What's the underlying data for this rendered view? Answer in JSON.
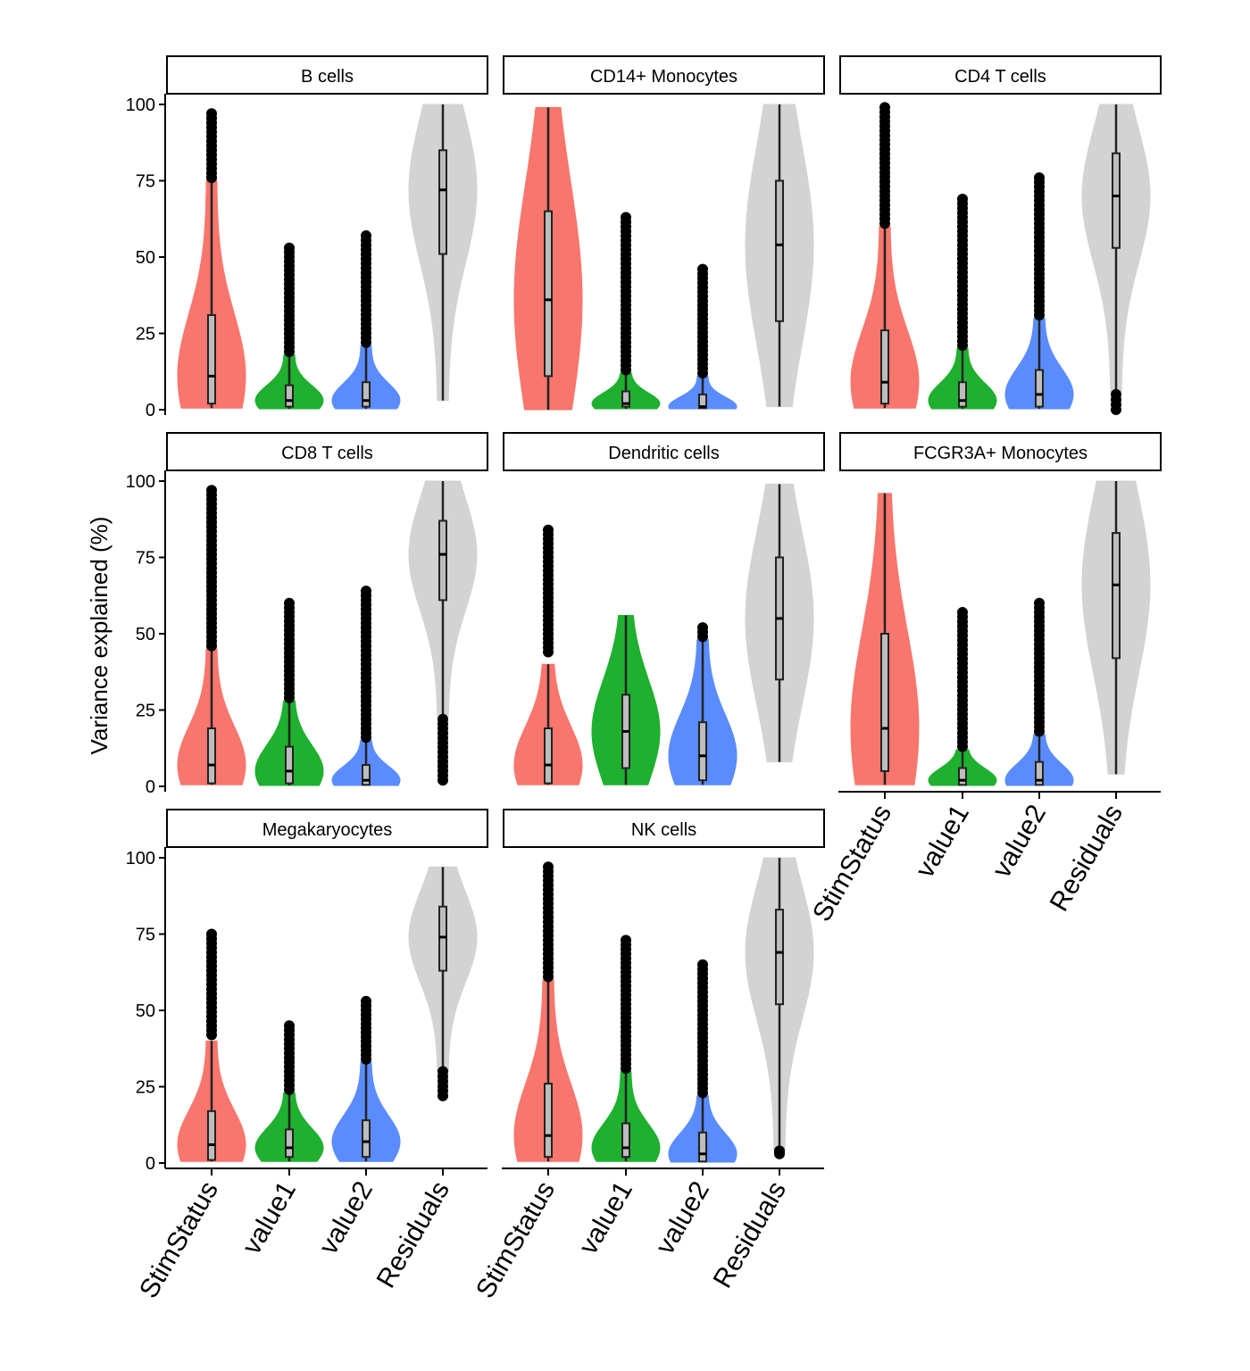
{
  "chart_data": {
    "type": "violin",
    "ylabel": "Variance explained (%)",
    "xlabel": "",
    "ylim": [
      0,
      100
    ],
    "yticks": [
      0,
      25,
      50,
      75,
      100
    ],
    "categories": [
      "StimStatus",
      "value1",
      "value2",
      "Residuals"
    ],
    "colors": {
      "StimStatus": "#F8766D",
      "value1": "#1EB02E",
      "value2": "#5A8CFF",
      "Residuals": "#D3D3D3"
    },
    "layout": "facet_wrap, 3 columns",
    "panels": [
      {
        "title": "B cells",
        "series": [
          {
            "category": "StimStatus",
            "min": 0.5,
            "q1": 2,
            "median": 11,
            "q3": 31,
            "whisker_high": 75,
            "outliers_from": 76,
            "outliers_to": 97
          },
          {
            "category": "value1",
            "min": 0.3,
            "q1": 1,
            "median": 3,
            "q3": 8,
            "whisker_high": 18,
            "outliers_from": 19,
            "outliers_to": 53
          },
          {
            "category": "value2",
            "min": 0.3,
            "q1": 1,
            "median": 3,
            "q3": 9,
            "whisker_high": 21,
            "outliers_from": 22,
            "outliers_to": 57
          },
          {
            "category": "Residuals",
            "min": 3,
            "q1": 51,
            "median": 72,
            "q3": 85,
            "whisker_high": 100,
            "outliers_from": null,
            "outliers_to": null
          }
        ]
      },
      {
        "title": "CD14+ Monocytes",
        "series": [
          {
            "category": "StimStatus",
            "min": 0,
            "q1": 11,
            "median": 36,
            "q3": 65,
            "whisker_high": 99,
            "outliers_from": null,
            "outliers_to": null
          },
          {
            "category": "value1",
            "min": 0.3,
            "q1": 1,
            "median": 2,
            "q3": 6,
            "whisker_high": 12,
            "outliers_from": 13,
            "outliers_to": 63
          },
          {
            "category": "value2",
            "min": 0.3,
            "q1": 0.5,
            "median": 1,
            "q3": 5,
            "whisker_high": 11,
            "outliers_from": 12,
            "outliers_to": 46
          },
          {
            "category": "Residuals",
            "min": 1,
            "q1": 29,
            "median": 54,
            "q3": 75,
            "whisker_high": 100,
            "outliers_from": null,
            "outliers_to": null
          }
        ]
      },
      {
        "title": "CD4 T cells",
        "series": [
          {
            "category": "StimStatus",
            "min": 0.5,
            "q1": 2,
            "median": 9,
            "q3": 26,
            "whisker_high": 60,
            "outliers_from": 61,
            "outliers_to": 99
          },
          {
            "category": "value1",
            "min": 0.3,
            "q1": 1,
            "median": 3,
            "q3": 9,
            "whisker_high": 20,
            "outliers_from": 21,
            "outliers_to": 69
          },
          {
            "category": "value2",
            "min": 0.3,
            "q1": 1,
            "median": 5,
            "q3": 13,
            "whisker_high": 30,
            "outliers_from": 31,
            "outliers_to": 76
          },
          {
            "category": "Residuals",
            "min": 6,
            "q1": 53,
            "median": 70,
            "q3": 84,
            "whisker_high": 100,
            "outliers_from": 0,
            "outliers_to": 5
          }
        ]
      },
      {
        "title": "CD8 T cells",
        "series": [
          {
            "category": "StimStatus",
            "min": 0.5,
            "q1": 1,
            "median": 7,
            "q3": 19,
            "whisker_high": 45,
            "outliers_from": 46,
            "outliers_to": 97
          },
          {
            "category": "value1",
            "min": 0.3,
            "q1": 1,
            "median": 5,
            "q3": 13,
            "whisker_high": 28,
            "outliers_from": 29,
            "outliers_to": 60
          },
          {
            "category": "value2",
            "min": 0.3,
            "q1": 0.5,
            "median": 2,
            "q3": 7,
            "whisker_high": 15,
            "outliers_from": 16,
            "outliers_to": 64
          },
          {
            "category": "Residuals",
            "min": 23,
            "q1": 61,
            "median": 76,
            "q3": 87,
            "whisker_high": 100,
            "outliers_from": 2,
            "outliers_to": 22
          }
        ]
      },
      {
        "title": "Dendritic cells",
        "series": [
          {
            "category": "StimStatus",
            "min": 0.5,
            "q1": 1,
            "median": 7,
            "q3": 19,
            "whisker_high": 40,
            "outliers_from": 44,
            "outliers_to": 84
          },
          {
            "category": "value1",
            "min": 0.5,
            "q1": 6,
            "median": 18,
            "q3": 30,
            "whisker_high": 56,
            "outliers_from": null,
            "outliers_to": null
          },
          {
            "category": "value2",
            "min": 0.5,
            "q1": 2,
            "median": 10,
            "q3": 21,
            "whisker_high": 48,
            "outliers_from": 49,
            "outliers_to": 52
          },
          {
            "category": "Residuals",
            "min": 8,
            "q1": 35,
            "median": 55,
            "q3": 75,
            "whisker_high": 99,
            "outliers_from": null,
            "outliers_to": null
          }
        ]
      },
      {
        "title": "FCGR3A+ Monocytes",
        "series": [
          {
            "category": "StimStatus",
            "min": 0.5,
            "q1": 5,
            "median": 19,
            "q3": 50,
            "whisker_high": 96,
            "outliers_from": null,
            "outliers_to": null
          },
          {
            "category": "value1",
            "min": 0.3,
            "q1": 0.5,
            "median": 2,
            "q3": 6,
            "whisker_high": 12,
            "outliers_from": 13,
            "outliers_to": 57
          },
          {
            "category": "value2",
            "min": 0.3,
            "q1": 0.5,
            "median": 2,
            "q3": 8,
            "whisker_high": 17,
            "outliers_from": 18,
            "outliers_to": 60
          },
          {
            "category": "Residuals",
            "min": 4,
            "q1": 42,
            "median": 66,
            "q3": 83,
            "whisker_high": 100,
            "outliers_from": null,
            "outliers_to": null
          }
        ]
      },
      {
        "title": "Megakaryocytes",
        "series": [
          {
            "category": "StimStatus",
            "min": 0.5,
            "q1": 1,
            "median": 6,
            "q3": 17,
            "whisker_high": 40,
            "outliers_from": 42,
            "outliers_to": 75
          },
          {
            "category": "value1",
            "min": 0.5,
            "q1": 2,
            "median": 5,
            "q3": 11,
            "whisker_high": 23,
            "outliers_from": 24,
            "outliers_to": 45
          },
          {
            "category": "value2",
            "min": 0.5,
            "q1": 2,
            "median": 7,
            "q3": 14,
            "whisker_high": 33,
            "outliers_from": 34,
            "outliers_to": 53
          },
          {
            "category": "Residuals",
            "min": 30,
            "q1": 63,
            "median": 74,
            "q3": 84,
            "whisker_high": 97,
            "outliers_from": 22,
            "outliers_to": 30
          }
        ]
      },
      {
        "title": "NK cells",
        "series": [
          {
            "category": "StimStatus",
            "min": 0.5,
            "q1": 2,
            "median": 9,
            "q3": 26,
            "whisker_high": 60,
            "outliers_from": 61,
            "outliers_to": 97
          },
          {
            "category": "value1",
            "min": 0.5,
            "q1": 2,
            "median": 5,
            "q3": 13,
            "whisker_high": 30,
            "outliers_from": 31,
            "outliers_to": 73
          },
          {
            "category": "value2",
            "min": 0.3,
            "q1": 0.5,
            "median": 3,
            "q3": 10,
            "whisker_high": 22,
            "outliers_from": 23,
            "outliers_to": 65
          },
          {
            "category": "Residuals",
            "min": 4,
            "q1": 52,
            "median": 69,
            "q3": 83,
            "whisker_high": 100,
            "outliers_from": 3,
            "outliers_to": 4
          }
        ]
      }
    ]
  }
}
